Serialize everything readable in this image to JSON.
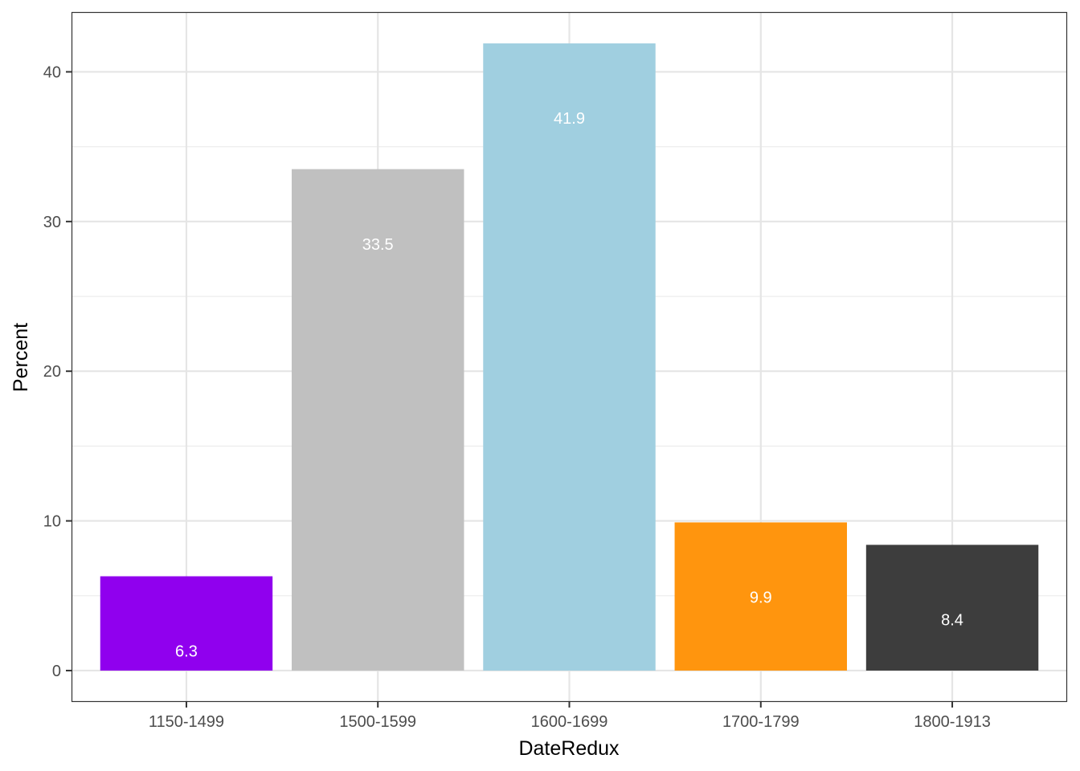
{
  "chart_data": {
    "type": "bar",
    "title": "",
    "xlabel": "DateRedux",
    "ylabel": "Percent",
    "categories": [
      "1150-1499",
      "1500-1599",
      "1600-1699",
      "1700-1799",
      "1800-1913"
    ],
    "values": [
      6.3,
      33.5,
      41.9,
      9.9,
      8.4
    ],
    "data_labels": [
      "6.3",
      "33.5",
      "41.9",
      "9.9",
      "8.4"
    ],
    "colors": [
      "#9000EE",
      "#C0C0C0",
      "#A0CFE0",
      "#FF950E",
      "#3D3D3D"
    ],
    "ylim": [
      -2.095,
      43.995
    ],
    "yticks": [
      0,
      10,
      20,
      30,
      40
    ],
    "ytick_labels": [
      "0",
      "10",
      "20",
      "30",
      "40"
    ],
    "grid": true,
    "legend": "none"
  }
}
